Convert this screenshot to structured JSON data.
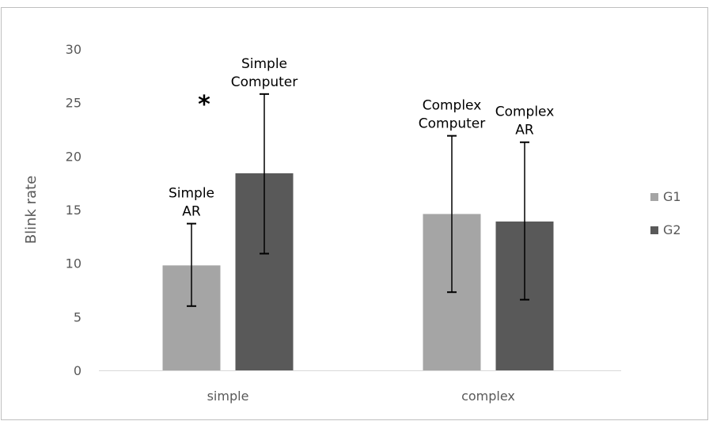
{
  "chart_data": {
    "type": "bar",
    "categories": [
      "simple",
      "complex"
    ],
    "ylabel": "Blink rate",
    "ylim": [
      0,
      30
    ],
    "yticks": [
      0,
      5,
      10,
      15,
      20,
      25,
      30
    ],
    "grid": false,
    "legend_position": "right",
    "series": [
      {
        "name": "G1",
        "color": "#a5a5a5",
        "values": [
          9.8,
          14.6
        ],
        "error_low": [
          6.0,
          7.3
        ],
        "error_high": [
          13.7,
          21.9
        ]
      },
      {
        "name": "G2",
        "color": "#595959",
        "values": [
          18.4,
          13.9
        ],
        "error_low": [
          10.9,
          6.6
        ],
        "error_high": [
          25.8,
          21.3
        ]
      }
    ],
    "annotations": [
      {
        "category": 0,
        "series": 0,
        "lines": [
          "Simple",
          "AR"
        ]
      },
      {
        "category": 0,
        "series": 1,
        "lines": [
          "Simple",
          "Computer"
        ]
      },
      {
        "category": 1,
        "series": 0,
        "lines": [
          "Complex",
          "Computer"
        ]
      },
      {
        "category": 1,
        "series": 1,
        "lines": [
          "Complex",
          "AR"
        ]
      }
    ],
    "significance": {
      "category": 0,
      "symbol": "*"
    }
  }
}
